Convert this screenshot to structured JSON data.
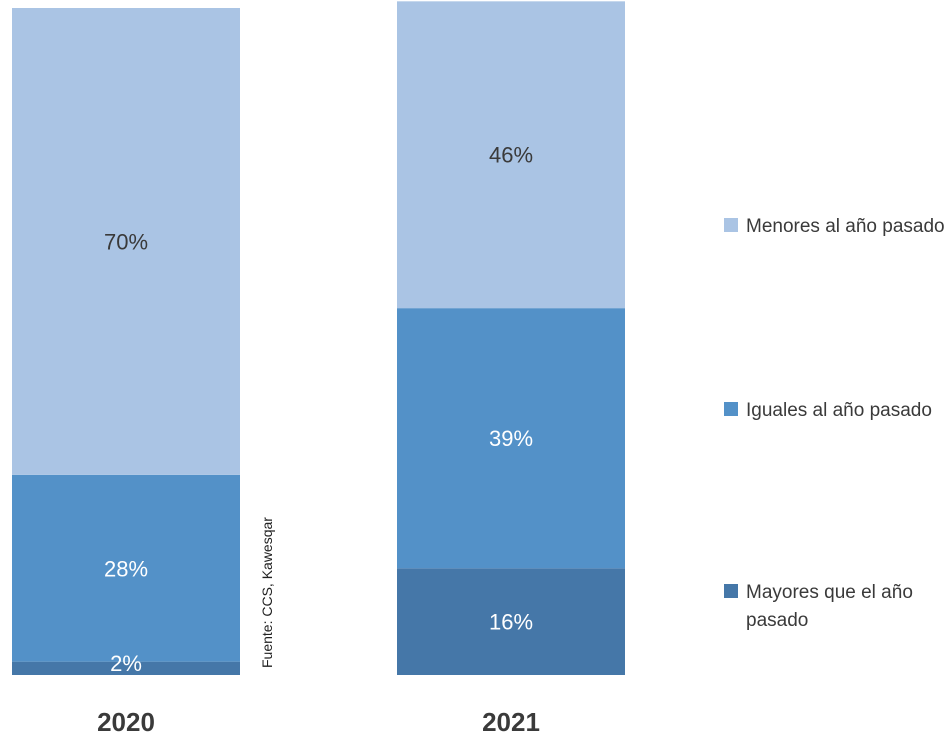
{
  "chart_data": {
    "type": "bar",
    "stacked": true,
    "categories": [
      "2020",
      "2021"
    ],
    "series": [
      {
        "name": "Mayores que el año pasado",
        "values": [
          2,
          16
        ],
        "labels": [
          "2%",
          "16%"
        ],
        "color": "#4577a8",
        "label_color": "#ffffff"
      },
      {
        "name": "Iguales al año pasado",
        "values": [
          28,
          39
        ],
        "labels": [
          "28%",
          "39%"
        ],
        "color": "#5391c8",
        "label_color": "#ffffff"
      },
      {
        "name": "Menores al año pasado",
        "values": [
          70,
          46
        ],
        "labels": [
          "70%",
          "46%"
        ],
        "color": "#aac4e4",
        "label_color": "#3a3a3a"
      }
    ],
    "legend_order": [
      2,
      1,
      0
    ],
    "legend_lines": [
      [
        "Menores al año pasado"
      ],
      [
        "Iguales al año pasado"
      ],
      [
        "Mayores que el año",
        "pasado"
      ]
    ],
    "ylim": [
      0,
      100
    ],
    "legend_position": "right",
    "grid": false,
    "source": "Fuente: CCS, Kawesqar"
  }
}
